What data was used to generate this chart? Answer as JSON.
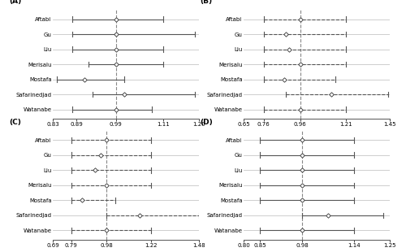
{
  "panels": [
    {
      "label": "(A)",
      "studies": [
        "Aftabi",
        "Gu",
        "Liu",
        "Merisalu",
        "Mostafa",
        "Safarinedjad",
        "Watanabe"
      ],
      "centers": [
        0.99,
        0.99,
        0.99,
        0.99,
        0.91,
        1.01,
        0.99
      ],
      "lo": [
        0.88,
        0.88,
        0.88,
        0.92,
        0.84,
        0.93,
        0.88
      ],
      "hi": [
        1.11,
        1.19,
        1.11,
        1.11,
        1.01,
        1.19,
        1.08
      ],
      "xlim": [
        0.83,
        1.2
      ],
      "xticks": [
        0.83,
        0.89,
        0.99,
        1.11,
        1.2
      ],
      "xticklabels": [
        "0.83",
        "0.89",
        "0.99",
        "1.11",
        "1.20"
      ],
      "vline": 0.99,
      "linestyle": "solid"
    },
    {
      "label": "(B)",
      "studies": [
        "Aftabi",
        "Gu",
        "Liu",
        "Merisalu",
        "Mostafa",
        "Safarinedjad",
        "Watanabe"
      ],
      "centers": [
        0.96,
        0.88,
        0.9,
        0.96,
        0.87,
        1.13,
        0.96
      ],
      "lo": [
        0.76,
        0.76,
        0.76,
        0.76,
        0.76,
        0.88,
        0.76
      ],
      "hi": [
        1.21,
        1.21,
        1.21,
        1.21,
        1.15,
        1.44,
        1.21
      ],
      "xlim": [
        0.65,
        1.45
      ],
      "xticks": [
        0.65,
        0.76,
        0.96,
        1.21,
        1.45
      ],
      "xticklabels": [
        "0.65",
        "0.76",
        "0.96",
        "1.21",
        "1.45"
      ],
      "vline": 0.96,
      "linestyle": "dashed"
    },
    {
      "label": "(C)",
      "studies": [
        "Aftabi",
        "Gu",
        "Liu",
        "Merisalu",
        "Mostafa",
        "Safarinedjad",
        "Watanabe"
      ],
      "centers": [
        0.98,
        0.95,
        0.92,
        0.98,
        0.85,
        1.16,
        0.98
      ],
      "lo": [
        0.79,
        0.79,
        0.79,
        0.79,
        0.79,
        0.98,
        0.79
      ],
      "hi": [
        1.22,
        1.22,
        1.22,
        1.22,
        1.03,
        1.48,
        1.22
      ],
      "xlim": [
        0.69,
        1.48
      ],
      "xticks": [
        0.69,
        0.79,
        0.98,
        1.22,
        1.48
      ],
      "xticklabels": [
        "0.69",
        "0.79",
        "0.98",
        "1.22",
        "1.48"
      ],
      "vline": 0.98,
      "linestyle": "dashed"
    },
    {
      "label": "(D)",
      "studies": [
        "Aftabi",
        "Gu",
        "Liu",
        "Merisalu",
        "Mostafa",
        "Safarinedjad",
        "Watanabe"
      ],
      "centers": [
        0.98,
        0.98,
        0.98,
        0.98,
        0.98,
        1.06,
        0.98
      ],
      "lo": [
        0.85,
        0.85,
        0.85,
        0.85,
        0.85,
        0.98,
        0.85
      ],
      "hi": [
        1.14,
        1.14,
        1.14,
        1.14,
        1.14,
        1.23,
        1.14
      ],
      "xlim": [
        0.8,
        1.25
      ],
      "xticks": [
        0.8,
        0.85,
        0.98,
        1.14,
        1.25
      ],
      "xticklabels": [
        "0.80",
        "0.85",
        "0.98",
        "1.14",
        "1.25"
      ],
      "vline": 0.98,
      "linestyle": "solid"
    }
  ],
  "study_fontsize": 5.0,
  "tick_fontsize": 5.0,
  "label_fontsize": 6.5,
  "marker_size": 2.8,
  "line_color": "#555555",
  "marker_color": "white",
  "marker_edge_color": "#333333",
  "vline_color": "#888888",
  "grid_color": "#bbbbbb",
  "bg_color": "white"
}
